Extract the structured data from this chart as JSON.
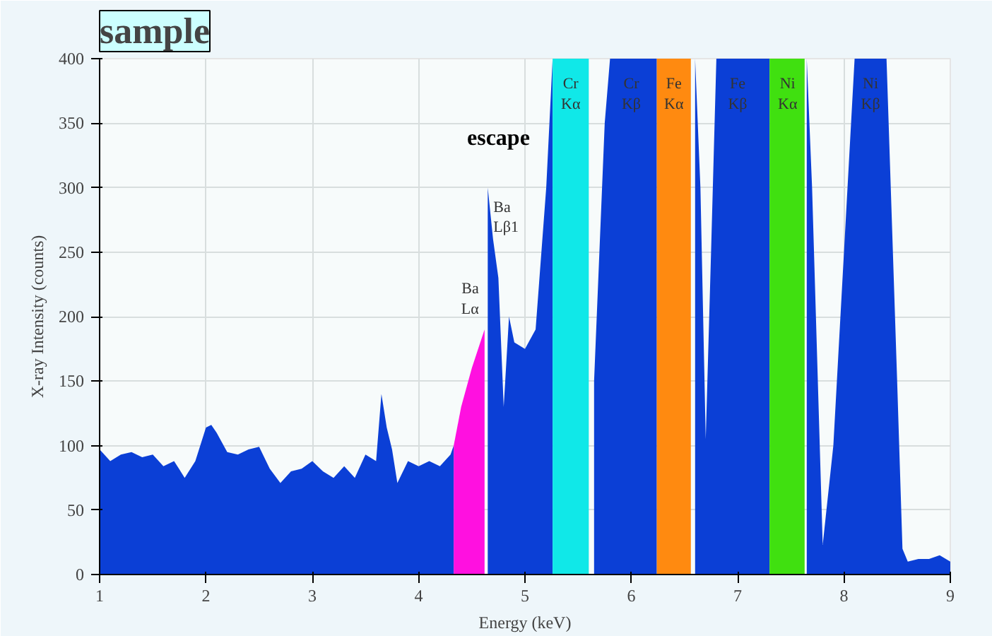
{
  "chart_data": {
    "type": "area",
    "title": "sample",
    "xlabel": "Energy (keV)",
    "ylabel": "X-ray Intensity (counts)",
    "xlim": [
      1,
      9
    ],
    "ylim": [
      0,
      400
    ],
    "xticks": [
      1,
      2,
      3,
      4,
      5,
      6,
      7,
      8,
      9
    ],
    "yticks": [
      0,
      50,
      100,
      150,
      200,
      250,
      300,
      350,
      400
    ],
    "grid": true,
    "series": [
      {
        "color": "#0b3fd6",
        "x": [
          1.0,
          1.1,
          1.2,
          1.3,
          1.4,
          1.5,
          1.6,
          1.7,
          1.8,
          1.9,
          2.0,
          2.05,
          2.1,
          2.2,
          2.3,
          2.4,
          2.5,
          2.6,
          2.7,
          2.8,
          2.9,
          3.0,
          3.1,
          3.2,
          3.3,
          3.4,
          3.5,
          3.6,
          3.65,
          3.7,
          3.75,
          3.8,
          3.9,
          4.0,
          4.1,
          4.2,
          4.3,
          4.33,
          4.62,
          4.65,
          4.7,
          4.75,
          4.8,
          4.85,
          4.9,
          5.0,
          5.1,
          5.2,
          5.26,
          5.6,
          5.65,
          5.7,
          5.75,
          5.8,
          6.0,
          6.24,
          6.56,
          6.6,
          6.65,
          6.7,
          6.75,
          6.8,
          7.0,
          7.3,
          7.63,
          7.65,
          7.7,
          7.8,
          7.9,
          8.0,
          8.1,
          8.25,
          8.4,
          8.5,
          8.55,
          8.6,
          8.7,
          8.8,
          8.9,
          9.0
        ],
        "values": [
          97,
          88,
          93,
          95,
          91,
          93,
          84,
          88,
          75,
          88,
          114,
          116,
          110,
          95,
          93,
          97,
          99,
          82,
          71,
          80,
          82,
          88,
          80,
          75,
          84,
          75,
          93,
          88,
          140,
          114,
          97,
          71,
          88,
          84,
          88,
          84,
          93,
          100,
          null,
          300,
          260,
          230,
          130,
          200,
          180,
          175,
          190,
          300,
          400,
          null,
          150,
          250,
          350,
          400,
          400,
          400,
          null,
          400,
          300,
          105,
          250,
          400,
          400,
          400,
          null,
          400,
          300,
          23,
          100,
          250,
          400,
          400,
          400,
          150,
          20,
          10,
          12,
          12,
          15,
          10
        ]
      },
      {
        "color": "#ff10e0",
        "x": [
          4.33,
          4.4,
          4.5,
          4.62
        ],
        "values": [
          100,
          130,
          160,
          190
        ]
      },
      {
        "color": "#10e8e8",
        "x": [
          5.26,
          5.6
        ],
        "values": [
          400,
          400
        ]
      },
      {
        "color": "#ff8a10",
        "x": [
          6.24,
          6.56
        ],
        "values": [
          400,
          400
        ]
      },
      {
        "color": "#40e010",
        "x": [
          7.3,
          7.63
        ],
        "values": [
          400,
          400
        ]
      }
    ],
    "annotations": [
      "escape",
      {
        "text": "Ba\nLα",
        "x": 4.62,
        "y": 190
      },
      {
        "text": "Ba\nLβ1",
        "x": 4.65,
        "y": 300
      },
      {
        "text": "Cr\nKα",
        "x": 5.43,
        "y": 400
      },
      {
        "text": "Cr\nKβ",
        "x": 6.0,
        "y": 400
      },
      {
        "text": "Fe\nKα",
        "x": 6.4,
        "y": 400
      },
      {
        "text": "Fe\nKβ",
        "x": 7.0,
        "y": 400
      },
      {
        "text": "Ni\nKα",
        "x": 7.47,
        "y": 400
      },
      {
        "text": "Ni\nKβ",
        "x": 8.25,
        "y": 400
      }
    ]
  }
}
